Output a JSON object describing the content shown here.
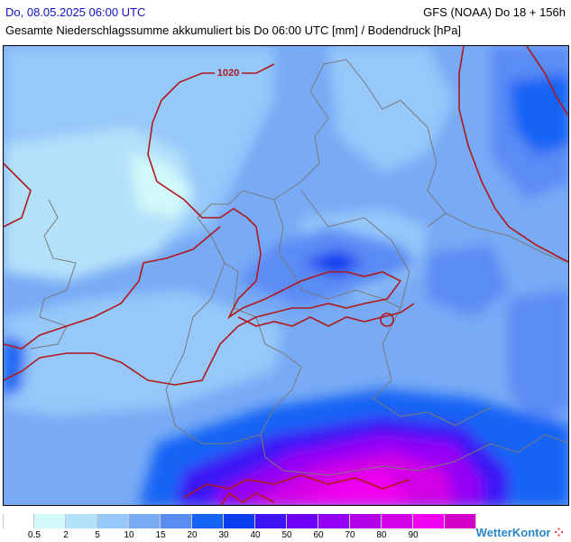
{
  "header": {
    "date": "Do, 08.05.2025 06:00 UTC",
    "model": "GFS (NOAA) Do 18 + 156h",
    "subtitle": "Gesamte Niederschlagssumme akkumuliert bis Do 06:00 UTC [mm] / Bodendruck [hPa]"
  },
  "map": {
    "isobar_color": "#b0181c",
    "border_color": "#7a7a7a",
    "isobar_labels": [
      "1020"
    ]
  },
  "legend": {
    "colors": [
      "#ffffff",
      "#d2fafa",
      "#b4e1fa",
      "#96c8fa",
      "#78aaf5",
      "#5a8cf5",
      "#1464f5",
      "#0a3cf0",
      "#3c14f5",
      "#6e00f5",
      "#9600f5",
      "#b400e6",
      "#d200e6",
      "#f000f0",
      "#d200c8"
    ],
    "labels": [
      "0.5",
      "2",
      "5",
      "10",
      "15",
      "20",
      "30",
      "40",
      "50",
      "60",
      "70",
      "80",
      "90"
    ]
  },
  "brand": {
    "name": "WetterKontor",
    "dots": "⁘"
  }
}
